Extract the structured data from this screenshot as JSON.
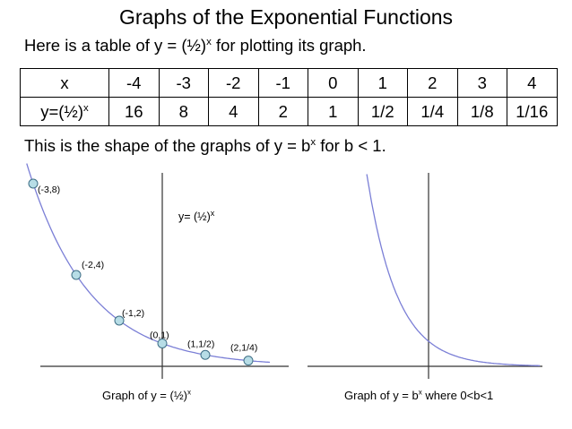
{
  "title": "Graphs of the Exponential Functions",
  "intro": {
    "text": "Here is a table of y = (½)",
    "sup": "x",
    "rest": " for plotting its graph."
  },
  "table": {
    "header_label": "x",
    "row_label": "y=(½)",
    "row_label_sup": "x",
    "x_values": [
      "-4",
      "-3",
      "-2",
      "-1",
      "0",
      "1",
      "2",
      "3",
      "4"
    ],
    "y_values": [
      "16",
      "8",
      "4",
      "2",
      "1",
      "1/2",
      "1/4",
      "1/8",
      "1/16"
    ]
  },
  "shape_line": {
    "text": "This is the shape of the graphs of y = b",
    "sup": "x",
    "rest": " for b < 1."
  },
  "left_graph": {
    "curve_label": {
      "text": "y= (½)",
      "sup": "x"
    },
    "points": [
      {
        "x": -3,
        "y": 8,
        "label": "(-3,8)"
      },
      {
        "x": -2,
        "y": 4,
        "label": "(-2,4)"
      },
      {
        "x": -1,
        "y": 2,
        "label": "(-1,2)"
      },
      {
        "x": 0,
        "y": 1,
        "label": "(0,1)"
      },
      {
        "x": 1,
        "y": 0.5,
        "label": "(1,1/2)"
      },
      {
        "x": 2,
        "y": 0.25,
        "label": "(2,1/4)"
      }
    ],
    "caption": {
      "text": "Graph of y = (½)",
      "sup": "x"
    }
  },
  "right_graph": {
    "caption": {
      "text": "Graph of y = b",
      "sup": "x",
      "rest": " where 0<b<1"
    }
  },
  "colors": {
    "curve": "#7b7fd6",
    "point_fill": "#b7dde6",
    "point_stroke": "#3f6f86",
    "axis": "#333333"
  }
}
